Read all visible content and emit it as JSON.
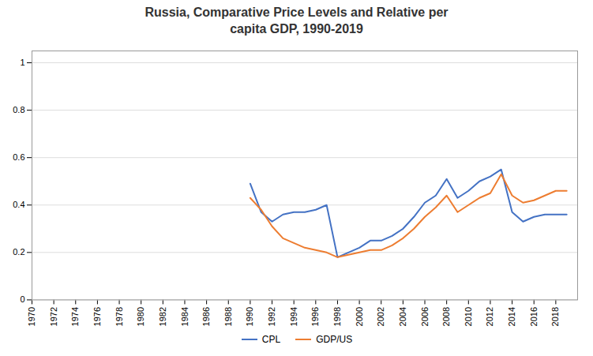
{
  "chart_data": {
    "type": "line",
    "title": "Russia, Comparative Price Levels and Relative per\ncapita GDP, 1990-2019",
    "x": [
      1990,
      1991,
      1992,
      1993,
      1994,
      1995,
      1996,
      1997,
      1998,
      1999,
      2000,
      2001,
      2002,
      2003,
      2004,
      2005,
      2006,
      2007,
      2008,
      2009,
      2010,
      2011,
      2012,
      2013,
      2014,
      2015,
      2016,
      2017,
      2018,
      2019
    ],
    "series": [
      {
        "name": "CPL",
        "color": "#4472C4",
        "values": [
          0.49,
          0.37,
          0.33,
          0.36,
          0.37,
          0.37,
          0.38,
          0.4,
          0.18,
          0.2,
          0.22,
          0.25,
          0.25,
          0.27,
          0.3,
          0.35,
          0.41,
          0.44,
          0.51,
          0.43,
          0.46,
          0.5,
          0.52,
          0.55,
          0.37,
          0.33,
          0.35,
          0.36,
          0.36,
          0.36
        ]
      },
      {
        "name": "GDP/US",
        "color": "#ED7D31",
        "values": [
          0.43,
          0.38,
          0.31,
          0.26,
          0.24,
          0.22,
          0.21,
          0.2,
          0.18,
          0.19,
          0.2,
          0.21,
          0.21,
          0.23,
          0.26,
          0.3,
          0.35,
          0.39,
          0.44,
          0.37,
          0.4,
          0.43,
          0.45,
          0.53,
          0.44,
          0.41,
          0.42,
          0.44,
          0.46,
          0.46
        ]
      }
    ],
    "xlim": [
      1970,
      2020
    ],
    "xticks": [
      1970,
      1972,
      1974,
      1976,
      1978,
      1980,
      1982,
      1984,
      1986,
      1988,
      1990,
      1992,
      1994,
      1996,
      1998,
      2000,
      2002,
      2004,
      2006,
      2008,
      2010,
      2012,
      2014,
      2016,
      2018
    ],
    "ylim": [
      0,
      1.05
    ],
    "yticks": [
      0,
      0.2,
      0.4,
      0.6,
      0.8,
      1
    ],
    "grid": true,
    "legend": "bottom"
  }
}
